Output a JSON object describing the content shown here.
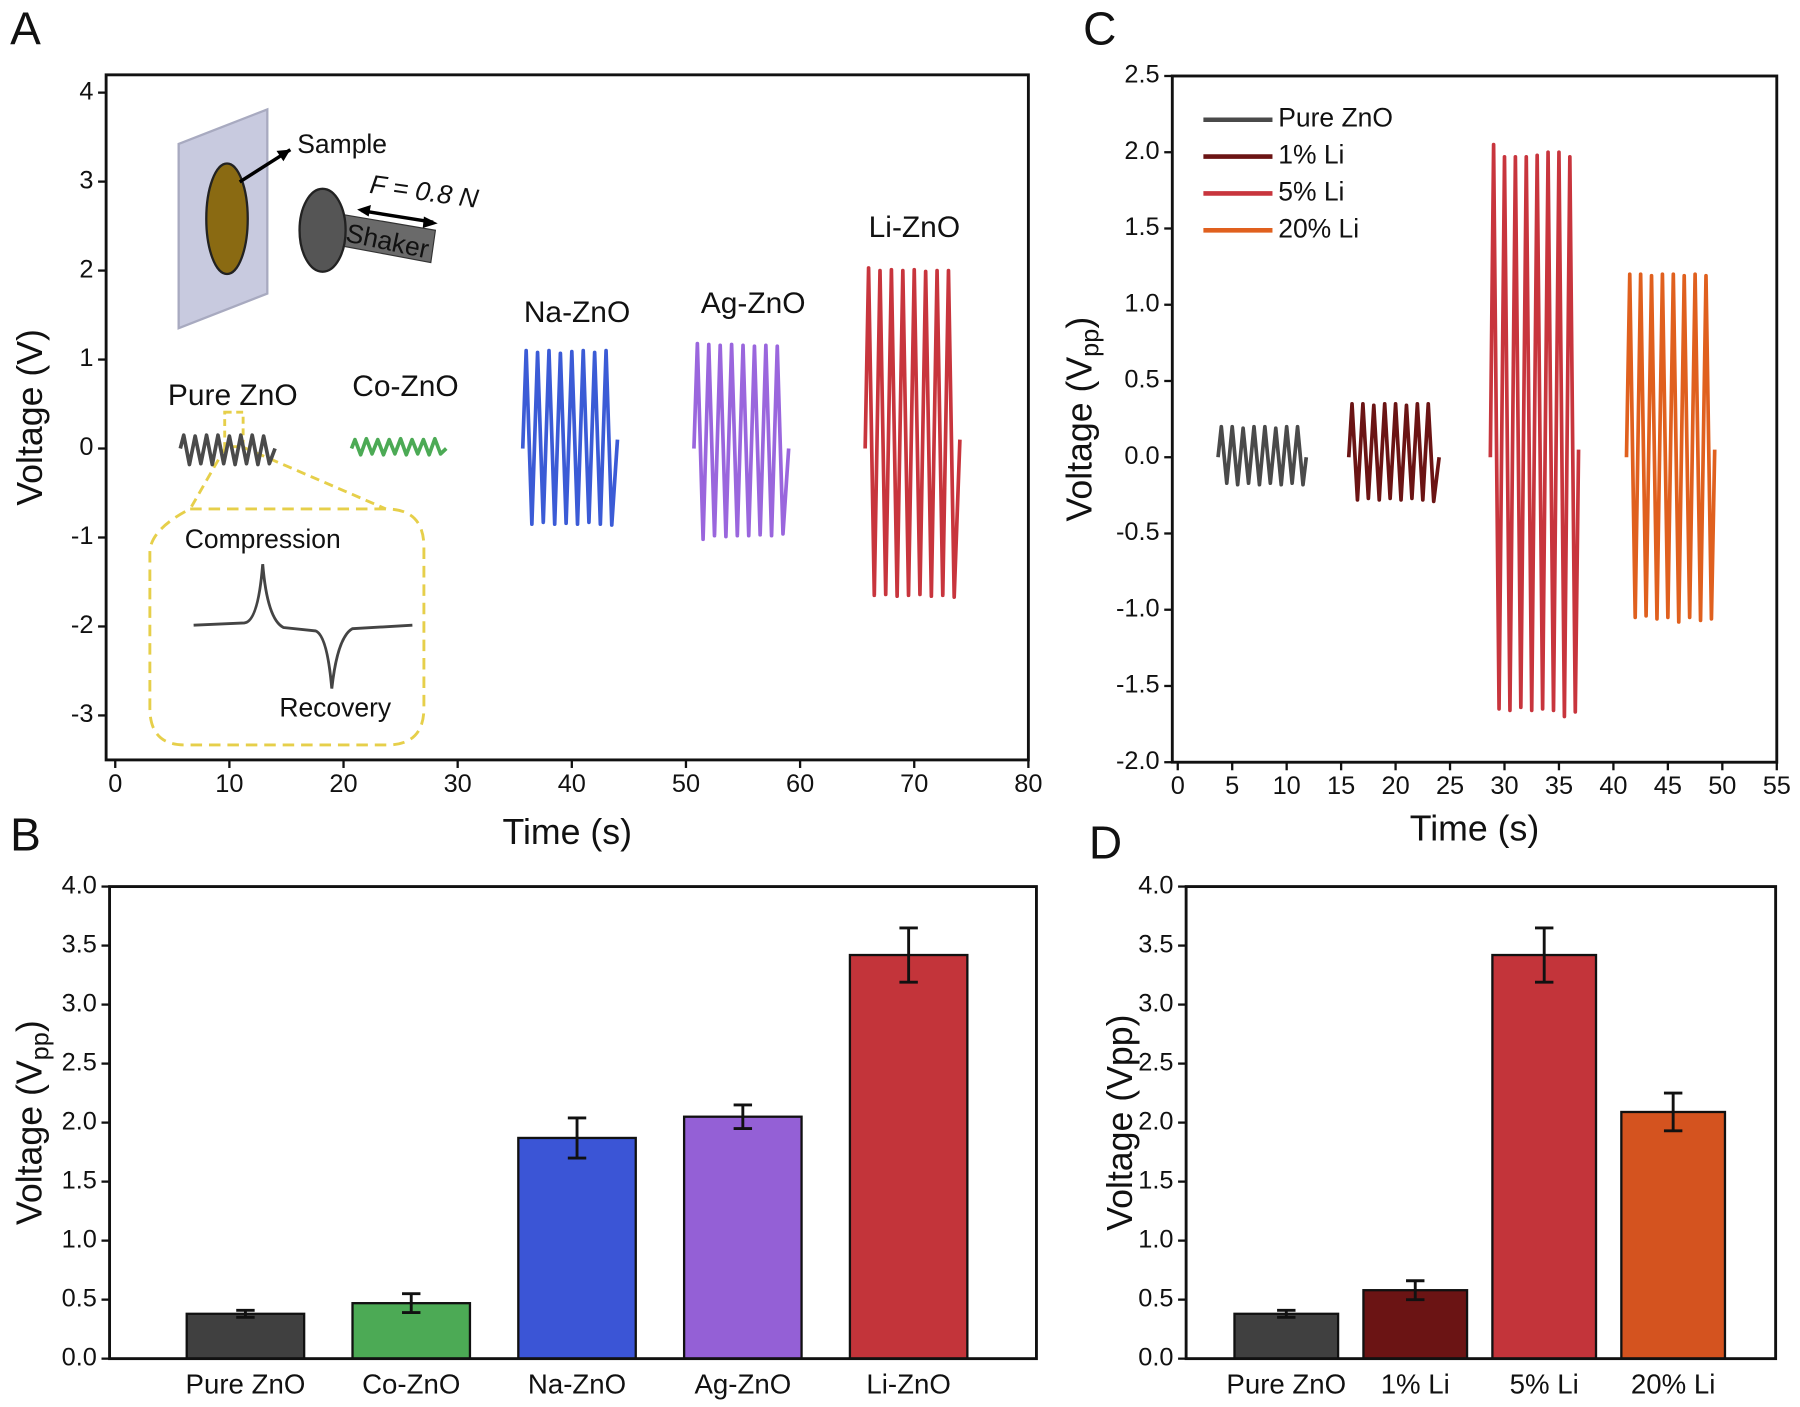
{
  "chart_data": [
    {
      "panel": "A",
      "type": "line",
      "xlabel": "Time (s)",
      "ylabel": "Voltage (V)",
      "xlim": [
        -0.8,
        80
      ],
      "ylim": [
        -3.5,
        4.2
      ],
      "xticks": [
        0,
        10,
        20,
        30,
        40,
        50,
        60,
        70,
        80
      ],
      "yticks": [
        -3,
        -2,
        -1,
        0,
        1,
        2,
        3,
        4
      ],
      "annotations": [
        "Sample",
        "F = 0.8 N",
        "Shaker",
        "Compression",
        "Recovery"
      ],
      "series": [
        {
          "name": "Pure ZnO",
          "color": "#4a4a4a",
          "x": [
            5.7,
            6,
            6.5,
            7,
            7.5,
            8,
            8.5,
            9,
            9.5,
            10,
            10.5,
            11,
            11.5,
            12,
            12.5,
            13,
            13.5,
            14
          ],
          "values": [
            0,
            0.15,
            -0.18,
            0.14,
            -0.17,
            0.15,
            -0.18,
            0.15,
            -0.17,
            0.14,
            -0.18,
            0.15,
            -0.17,
            0.15,
            -0.18,
            0.14,
            -0.17,
            0
          ]
        },
        {
          "name": "Co-ZnO",
          "color": "#4caa55",
          "x": [
            20.7,
            21,
            21.5,
            22,
            22.5,
            23,
            23.5,
            24,
            24.5,
            25,
            25.5,
            26,
            26.5,
            27,
            27.5,
            28,
            28.5,
            29
          ],
          "values": [
            0,
            0.1,
            -0.07,
            0.11,
            -0.06,
            0.1,
            -0.07,
            0.1,
            -0.06,
            0.11,
            -0.07,
            0.1,
            -0.06,
            0.1,
            -0.07,
            0.11,
            -0.06,
            0
          ]
        },
        {
          "name": "Na-ZnO",
          "color": "#3b5bd6",
          "x": [
            35.7,
            36,
            36.5,
            37,
            37.5,
            38,
            38.5,
            39,
            39.5,
            40,
            40.5,
            41,
            41.5,
            42,
            42.5,
            43,
            43.5,
            44
          ],
          "values": [
            0,
            1.1,
            -0.85,
            1.08,
            -0.83,
            1.1,
            -0.85,
            1.07,
            -0.84,
            1.09,
            -0.85,
            1.1,
            -0.83,
            1.08,
            -0.85,
            1.1,
            -0.86,
            0.1
          ]
        },
        {
          "name": "Ag-ZnO",
          "color": "#9a66dd",
          "x": [
            50.7,
            51,
            51.5,
            52,
            52.5,
            53,
            53.5,
            54,
            54.5,
            55,
            55.5,
            56,
            56.5,
            57,
            57.5,
            58,
            58.5,
            59
          ],
          "values": [
            0,
            1.18,
            -1.02,
            1.17,
            -0.98,
            1.16,
            -0.99,
            1.17,
            -0.98,
            1.16,
            -0.98,
            1.15,
            -0.97,
            1.16,
            -0.98,
            1.15,
            -0.96,
            0
          ]
        },
        {
          "name": "Li-ZnO",
          "color": "#c8353d",
          "x": [
            65.7,
            66,
            66.5,
            67,
            67.5,
            68,
            68.5,
            69,
            69.5,
            70,
            70.5,
            71,
            71.5,
            72,
            72.5,
            73,
            73.5,
            74
          ],
          "values": [
            0,
            2.03,
            -1.65,
            2.0,
            -1.64,
            2.01,
            -1.66,
            2.0,
            -1.65,
            2.01,
            -1.64,
            1.99,
            -1.66,
            2.0,
            -1.65,
            2.0,
            -1.67,
            0.1
          ]
        }
      ]
    },
    {
      "panel": "B",
      "type": "bar",
      "ylabel": {
        "text": "Voltage (V",
        "sub": "pp",
        "end": ")"
      },
      "ylim": [
        0,
        4
      ],
      "yticks": [
        {
          "value": 0,
          "label": "0.0"
        },
        0.5,
        {
          "value": 1,
          "label": "1.0"
        },
        1.5,
        {
          "value": 2,
          "label": "2.0"
        },
        2.5,
        {
          "value": 3,
          "label": "3.0"
        },
        3.5,
        {
          "value": 4,
          "label": "4.0"
        }
      ],
      "categories": [
        "Pure ZnO",
        "Co-ZnO",
        "Na-ZnO",
        "Ag-ZnO",
        "Li-ZnO"
      ],
      "values": [
        0.38,
        0.47,
        1.87,
        2.05,
        3.42
      ],
      "errors": [
        0.03,
        0.08,
        0.17,
        0.1,
        0.23
      ],
      "colors": [
        "#404040",
        "#4caa55",
        "#3b55d6",
        "#9460d6",
        "#c3343a"
      ]
    },
    {
      "panel": "C",
      "type": "line",
      "xlabel": "Time (s)",
      "ylabel": {
        "text": "Voltage (V",
        "sub": "pp",
        "end": ")"
      },
      "xlim": [
        -0.5,
        55
      ],
      "ylim": [
        -2,
        2.5
      ],
      "legend": "upper left",
      "xticks": [
        0,
        5,
        10,
        15,
        20,
        25,
        30,
        35,
        40,
        45,
        50,
        55
      ],
      "yticks": [
        {
          "value": -2,
          "label": "-2.0"
        },
        -1.5,
        {
          "value": -1,
          "label": "-1.0"
        },
        -0.5,
        {
          "value": 0,
          "label": "0.0"
        },
        0.5,
        {
          "value": 1,
          "label": "1.0"
        },
        1.5,
        {
          "value": 2,
          "label": "2.0"
        },
        2.5
      ],
      "series": [
        {
          "name": "Pure ZnO",
          "color": "#4a4a4a",
          "x": [
            3.7,
            4,
            4.5,
            5,
            5.5,
            6,
            6.5,
            7,
            7.5,
            8,
            8.5,
            9,
            9.5,
            10,
            10.5,
            11,
            11.5,
            11.8
          ],
          "values": [
            0,
            0.2,
            -0.17,
            0.2,
            -0.18,
            0.19,
            -0.17,
            0.2,
            -0.18,
            0.2,
            -0.17,
            0.19,
            -0.18,
            0.2,
            -0.17,
            0.2,
            -0.18,
            0
          ]
        },
        {
          "name": "1% Li",
          "color": "#6b1414",
          "x": [
            15.7,
            16,
            16.5,
            17,
            17.5,
            18,
            18.5,
            19,
            19.5,
            20,
            20.5,
            21,
            21.5,
            22,
            22.5,
            23,
            23.5,
            24
          ],
          "values": [
            0,
            0.35,
            -0.28,
            0.35,
            -0.27,
            0.34,
            -0.28,
            0.35,
            -0.27,
            0.35,
            -0.28,
            0.34,
            -0.27,
            0.35,
            -0.28,
            0.35,
            -0.29,
            0
          ]
        },
        {
          "name": "5% Li",
          "color": "#c8353d",
          "x": [
            28.7,
            29,
            29.5,
            30,
            30.5,
            31,
            31.5,
            32,
            32.5,
            33,
            33.5,
            34,
            34.5,
            35,
            35.5,
            36,
            36.5,
            36.8
          ],
          "values": [
            0,
            2.05,
            -1.65,
            1.97,
            -1.66,
            1.97,
            -1.64,
            1.97,
            -1.66,
            1.98,
            -1.65,
            2.0,
            -1.66,
            2.0,
            -1.7,
            1.97,
            -1.67,
            0.05
          ]
        },
        {
          "name": "20% Li",
          "color": "#e0601e",
          "x": [
            41.2,
            41.5,
            42,
            42.5,
            43,
            43.5,
            44,
            44.5,
            45,
            45.5,
            46,
            46.5,
            47,
            47.5,
            48,
            48.5,
            49,
            49.3
          ],
          "values": [
            0,
            1.2,
            -1.05,
            1.2,
            -1.04,
            1.19,
            -1.06,
            1.2,
            -1.05,
            1.2,
            -1.08,
            1.19,
            -1.05,
            1.2,
            -1.07,
            1.19,
            -1.06,
            0.05
          ]
        }
      ]
    },
    {
      "panel": "D",
      "type": "bar",
      "ylabel": "Voltage (Vpp)",
      "ylim": [
        0,
        4
      ],
      "yticks": [
        {
          "value": 0,
          "label": "0.0"
        },
        0.5,
        {
          "value": 1,
          "label": "1.0"
        },
        1.5,
        {
          "value": 2,
          "label": "2.0"
        },
        2.5,
        {
          "value": 3,
          "label": "3.0"
        },
        3.5,
        {
          "value": 4,
          "label": "4.0"
        }
      ],
      "categories": [
        "Pure ZnO",
        "1% Li",
        "5% Li",
        "20% Li"
      ],
      "values": [
        0.38,
        0.58,
        3.42,
        2.09
      ],
      "errors": [
        0.03,
        0.08,
        0.23,
        0.16
      ],
      "colors": [
        "#404040",
        "#6b1414",
        "#c3343a",
        "#d4531f"
      ]
    }
  ]
}
